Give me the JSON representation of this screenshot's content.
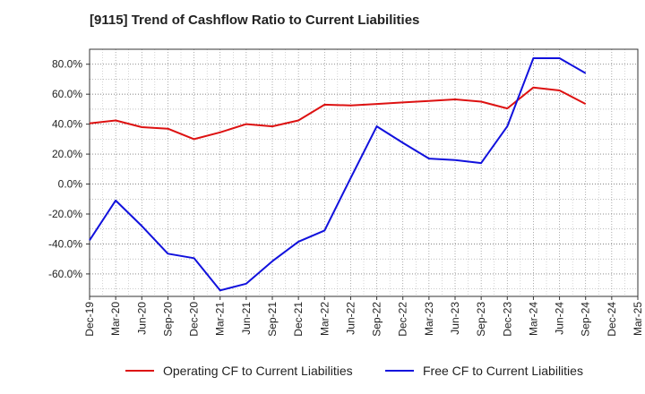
{
  "chart_data": {
    "type": "line",
    "title": "[9115]  Trend of Cashflow Ratio to Current Liabilities",
    "xlabel": "",
    "ylabel": "",
    "x": [
      "Dec-19",
      "Mar-20",
      "Jun-20",
      "Sep-20",
      "Dec-20",
      "Mar-21",
      "Jun-21",
      "Sep-21",
      "Dec-21",
      "Mar-22",
      "Jun-22",
      "Sep-22",
      "Dec-22",
      "Mar-23",
      "Jun-23",
      "Sep-23",
      "Dec-23",
      "Mar-24",
      "Jun-24",
      "Sep-24",
      "Dec-24",
      "Mar-25"
    ],
    "yticks": [
      -60,
      -40,
      -20,
      0,
      20,
      40,
      60,
      80
    ],
    "ytick_labels": [
      "-60.0%",
      "-40.0%",
      "-20.0%",
      "0.0%",
      "20.0%",
      "40.0%",
      "60.0%",
      "80.0%"
    ],
    "ylim": [
      -75,
      90
    ],
    "grid": true,
    "legend_position": "bottom",
    "series": [
      {
        "name": "Operating CF to Current Liabilities",
        "color": "#dd1111",
        "values": [
          40.5,
          42.5,
          38.0,
          37.0,
          30.0,
          34.5,
          40.0,
          38.5,
          42.5,
          53.0,
          52.5,
          53.5,
          54.5,
          55.5,
          56.5,
          55.0,
          50.5,
          64.5,
          62.5,
          53.5,
          null,
          null
        ]
      },
      {
        "name": "Free CF to Current Liabilities",
        "color": "#1111dd",
        "values": [
          -37.5,
          -11.0,
          -28.0,
          -46.5,
          -49.5,
          -71.0,
          -66.5,
          -51.5,
          -38.5,
          -31.0,
          4.0,
          38.5,
          27.5,
          17.0,
          16.0,
          14.0,
          38.5,
          84.0,
          84.0,
          74.0,
          null,
          null
        ]
      }
    ]
  }
}
